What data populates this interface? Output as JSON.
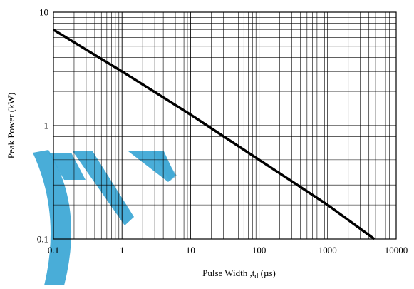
{
  "chart_data": {
    "type": "line",
    "title": "",
    "xlabel": "Pulse Width ,t",
    "xlabel_subscript": "d",
    "xlabel_unit": " (µs)",
    "ylabel": "Peak Power  (kW)",
    "x_scale": "log",
    "y_scale": "log",
    "xlim": [
      0.1,
      10000
    ],
    "ylim": [
      0.1,
      10
    ],
    "grid": true,
    "x_ticks": [
      {
        "value": 0.1,
        "label": "0.1"
      },
      {
        "value": 1,
        "label": "1"
      },
      {
        "value": 10,
        "label": "10"
      },
      {
        "value": 100,
        "label": "100"
      },
      {
        "value": 1000,
        "label": "1000"
      },
      {
        "value": 10000,
        "label": "10000"
      }
    ],
    "y_ticks": [
      {
        "value": 0.1,
        "label": "0.1"
      },
      {
        "value": 1,
        "label": "1"
      },
      {
        "value": 10,
        "label": "10"
      }
    ],
    "series": [
      {
        "x": [
          0.1,
          1,
          10,
          100,
          1000,
          4800
        ],
        "y": [
          7.0,
          3.0,
          1.25,
          0.5,
          0.2,
          0.1
        ]
      }
    ],
    "colors": {
      "line": "#000000",
      "grid": "#000000",
      "watermark": "#3fa9d6"
    }
  }
}
